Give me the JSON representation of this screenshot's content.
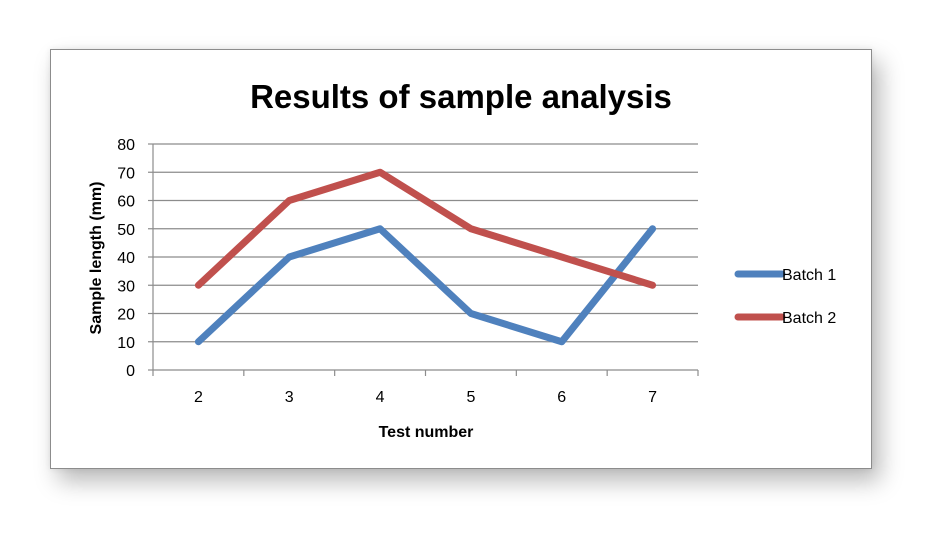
{
  "chart_data": {
    "type": "line",
    "title": "Results of sample analysis",
    "xlabel": "Test number",
    "ylabel": "Sample length (mm)",
    "categories": [
      "2",
      "3",
      "4",
      "5",
      "6",
      "7"
    ],
    "ylim": [
      0,
      80
    ],
    "yticks": [
      0,
      10,
      20,
      30,
      40,
      50,
      60,
      70,
      80
    ],
    "grid": true,
    "legend_position": "right",
    "series": [
      {
        "name": "Batch 1",
        "values": [
          10,
          40,
          50,
          20,
          10,
          50
        ],
        "color": "#4F81BD"
      },
      {
        "name": "Batch 2",
        "values": [
          30,
          60,
          70,
          50,
          40,
          30
        ],
        "color": "#C0504D"
      }
    ]
  }
}
